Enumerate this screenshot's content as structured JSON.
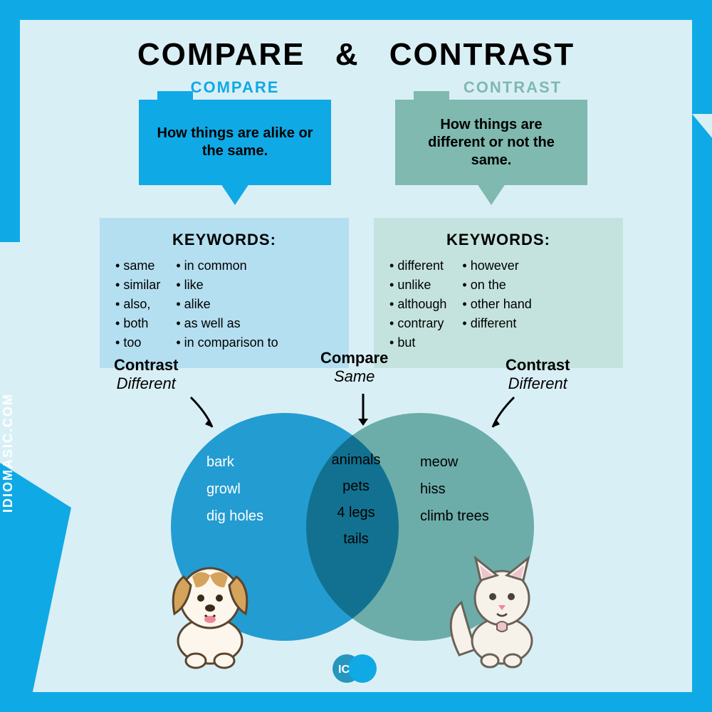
{
  "colors": {
    "frame": "#0fa9e6",
    "page_bg": "#d9eff6",
    "compare_primary": "#0fa9e6",
    "compare_light": "#b4dff0",
    "contrast_primary": "#7fb9b0",
    "contrast_light": "#c4e3de",
    "venn_left": "#29a7d9",
    "venn_right": "#7fb9b0",
    "text": "#000000",
    "white": "#ffffff"
  },
  "site": "IDIOMASIC.COM",
  "title_left": "COMPARE",
  "title_amp": "&",
  "title_right": "CONTRAST",
  "compare": {
    "label": "COMPARE",
    "definition": "How things are alike or the same.",
    "keywords_heading": "KEYWORDS:",
    "keywords_col1": [
      "same",
      "similar",
      "also,",
      "both",
      "too"
    ],
    "keywords_col2": [
      "in common",
      "like",
      "alike",
      "as well as",
      "in comparison to"
    ]
  },
  "contrast": {
    "label": "CONTRAST",
    "definition": "How things are different or not the same.",
    "keywords_heading": "KEYWORDS:",
    "keywords_col1": [
      "different",
      "unlike",
      "although",
      "contrary",
      "but"
    ],
    "keywords_col2": [
      "however",
      "on the",
      "other hand",
      "different"
    ]
  },
  "venn": {
    "left_label_bold": "Contrast",
    "left_label_ital": "Different",
    "mid_label_bold": "Compare",
    "mid_label_ital": "Same",
    "right_label_bold": "Contrast",
    "right_label_ital": "Different",
    "left_items": [
      "bark",
      "growl",
      "dig holes"
    ],
    "mid_items": [
      "animals",
      "pets",
      "4 legs",
      "tails"
    ],
    "right_items": [
      "meow",
      "hiss",
      "climb trees"
    ],
    "left_animal": "dog",
    "right_animal": "cat"
  },
  "logo_text": "IC"
}
